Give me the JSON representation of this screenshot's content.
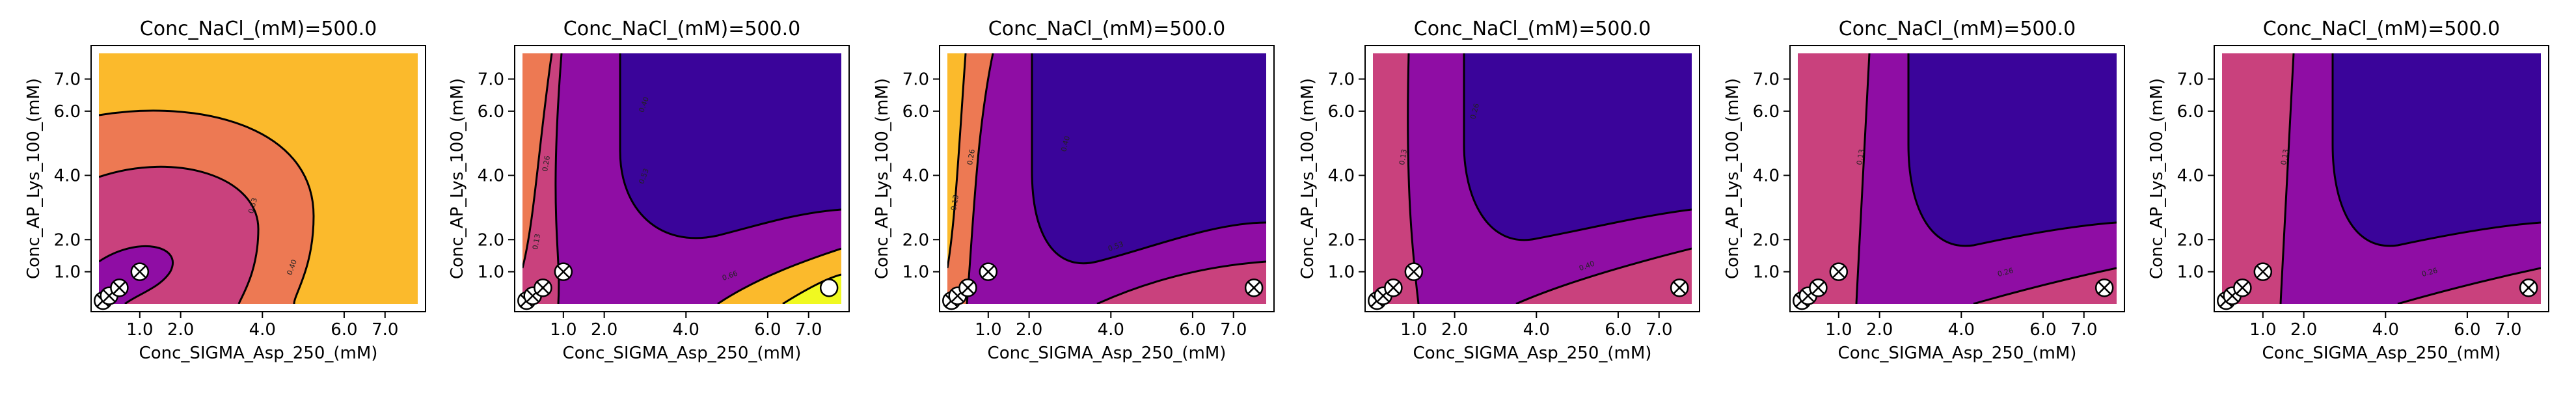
{
  "chart_data": [
    {
      "type": "contour",
      "title": "Conc_NaCl_(mM)=500.0",
      "xlabel": "Conc_SIGMA_Asp_250_(mM)",
      "ylabel": "Conc_AP_Lys_100_(mM)",
      "xticks": [
        "1.0",
        "2.0",
        "4.0",
        "6.0",
        "7.0"
      ],
      "yticks": [
        "1.0",
        "2.0",
        "4.0",
        "6.0",
        "7.0"
      ],
      "colors": {
        "level1": "#3a049a",
        "level2": "#8f0da4",
        "level3": "#c9417d",
        "level4": "#ed7953",
        "level5": "#fbba2c",
        "level6": "#f0f921"
      },
      "contour_labels": [
        "0.40",
        "0.53"
      ],
      "points": [
        {
          "x": 0.1,
          "y": 0.1,
          "marker": "crossed"
        },
        {
          "x": 0.25,
          "y": 0.25,
          "marker": "crossed"
        },
        {
          "x": 0.5,
          "y": 0.5,
          "marker": "crossed"
        },
        {
          "x": 1.0,
          "y": 1.0,
          "marker": "crossed"
        }
      ]
    },
    {
      "type": "contour",
      "title": "Conc_NaCl_(mM)=500.0",
      "xlabel": "Conc_SIGMA_Asp_250_(mM)",
      "ylabel": "Conc_AP_Lys_100_(mM)",
      "xticks": [
        "1.0",
        "2.0",
        "4.0",
        "6.0",
        "7.0"
      ],
      "yticks": [
        "1.0",
        "2.0",
        "4.0",
        "6.0",
        "7.0"
      ],
      "colors": {
        "level1": "#3a049a",
        "level2": "#8f0da4",
        "level3": "#c9417d",
        "level4": "#ed7953",
        "level5": "#fbba2c",
        "level6": "#f0f921"
      },
      "contour_labels": [
        "0.13",
        "0.26",
        "0.40",
        "0.53",
        "0.66"
      ],
      "points": [
        {
          "x": 0.1,
          "y": 0.1,
          "marker": "crossed"
        },
        {
          "x": 0.25,
          "y": 0.25,
          "marker": "crossed"
        },
        {
          "x": 0.5,
          "y": 0.5,
          "marker": "crossed"
        },
        {
          "x": 1.0,
          "y": 1.0,
          "marker": "crossed"
        },
        {
          "x": 7.5,
          "y": 0.5,
          "marker": "open"
        }
      ]
    },
    {
      "type": "contour",
      "title": "Conc_NaCl_(mM)=500.0",
      "xlabel": "Conc_SIGMA_Asp_250_(mM)",
      "ylabel": "Conc_AP_Lys_100_(mM)",
      "xticks": [
        "1.0",
        "2.0",
        "4.0",
        "6.0",
        "7.0"
      ],
      "yticks": [
        "1.0",
        "2.0",
        "4.0",
        "6.0",
        "7.0"
      ],
      "colors": {
        "level1": "#3a049a",
        "level2": "#8f0da4",
        "level3": "#c9417d",
        "level4": "#ed7953",
        "level5": "#fbba2c",
        "level6": "#f0f921"
      },
      "contour_labels": [
        "0.13",
        "0.26",
        "0.40",
        "0.53"
      ],
      "points": [
        {
          "x": 0.1,
          "y": 0.1,
          "marker": "crossed"
        },
        {
          "x": 0.25,
          "y": 0.25,
          "marker": "crossed"
        },
        {
          "x": 0.5,
          "y": 0.5,
          "marker": "crossed"
        },
        {
          "x": 1.0,
          "y": 1.0,
          "marker": "crossed"
        },
        {
          "x": 7.5,
          "y": 0.5,
          "marker": "crossed"
        }
      ]
    },
    {
      "type": "contour",
      "title": "Conc_NaCl_(mM)=500.0",
      "xlabel": "Conc_SIGMA_Asp_250_(mM)",
      "ylabel": "Conc_AP_Lys_100_(mM)",
      "xticks": [
        "1.0",
        "2.0",
        "4.0",
        "6.0",
        "7.0"
      ],
      "yticks": [
        "1.0",
        "2.0",
        "4.0",
        "6.0",
        "7.0"
      ],
      "colors": {
        "level1": "#3a049a",
        "level2": "#8f0da4",
        "level3": "#c9417d",
        "level4": "#ed7953",
        "level5": "#fbba2c",
        "level6": "#f0f921"
      },
      "contour_labels": [
        "0.13",
        "0.26",
        "0.40"
      ],
      "points": [
        {
          "x": 0.1,
          "y": 0.1,
          "marker": "crossed"
        },
        {
          "x": 0.25,
          "y": 0.25,
          "marker": "crossed"
        },
        {
          "x": 0.5,
          "y": 0.5,
          "marker": "crossed"
        },
        {
          "x": 1.0,
          "y": 1.0,
          "marker": "crossed"
        },
        {
          "x": 7.5,
          "y": 0.5,
          "marker": "crossed"
        }
      ]
    },
    {
      "type": "contour",
      "title": "Conc_NaCl_(mM)=500.0",
      "xlabel": "Conc_SIGMA_Asp_250_(mM)",
      "ylabel": "Conc_AP_Lys_100_(mM)",
      "xticks": [
        "1.0",
        "2.0",
        "4.0",
        "6.0",
        "7.0"
      ],
      "yticks": [
        "1.0",
        "2.0",
        "4.0",
        "6.0",
        "7.0"
      ],
      "colors": {
        "level1": "#3a049a",
        "level2": "#8f0da4",
        "level3": "#c9417d",
        "level4": "#ed7953",
        "level5": "#fbba2c",
        "level6": "#f0f921"
      },
      "contour_labels": [
        "0.13",
        "0.26"
      ],
      "points": [
        {
          "x": 0.1,
          "y": 0.1,
          "marker": "crossed"
        },
        {
          "x": 0.25,
          "y": 0.25,
          "marker": "crossed"
        },
        {
          "x": 0.5,
          "y": 0.5,
          "marker": "crossed"
        },
        {
          "x": 1.0,
          "y": 1.0,
          "marker": "crossed"
        },
        {
          "x": 7.5,
          "y": 0.5,
          "marker": "crossed"
        }
      ]
    },
    {
      "type": "contour",
      "title": "Conc_NaCl_(mM)=500.0",
      "xlabel": "Conc_SIGMA_Asp_250_(mM)",
      "ylabel": "Conc_AP_Lys_100_(mM)",
      "xticks": [
        "1.0",
        "2.0",
        "4.0",
        "6.0",
        "7.0"
      ],
      "yticks": [
        "1.0",
        "2.0",
        "4.0",
        "6.0",
        "7.0"
      ],
      "colors": {
        "level1": "#3a049a",
        "level2": "#8f0da4",
        "level3": "#c9417d",
        "level4": "#ed7953",
        "level5": "#fbba2c",
        "level6": "#f0f921"
      },
      "contour_labels": [
        "0.13",
        "0.26"
      ],
      "points": [
        {
          "x": 0.1,
          "y": 0.1,
          "marker": "crossed"
        },
        {
          "x": 0.25,
          "y": 0.25,
          "marker": "crossed"
        },
        {
          "x": 0.5,
          "y": 0.5,
          "marker": "crossed"
        },
        {
          "x": 1.0,
          "y": 1.0,
          "marker": "crossed"
        },
        {
          "x": 7.5,
          "y": 0.5,
          "marker": "crossed"
        }
      ]
    }
  ]
}
